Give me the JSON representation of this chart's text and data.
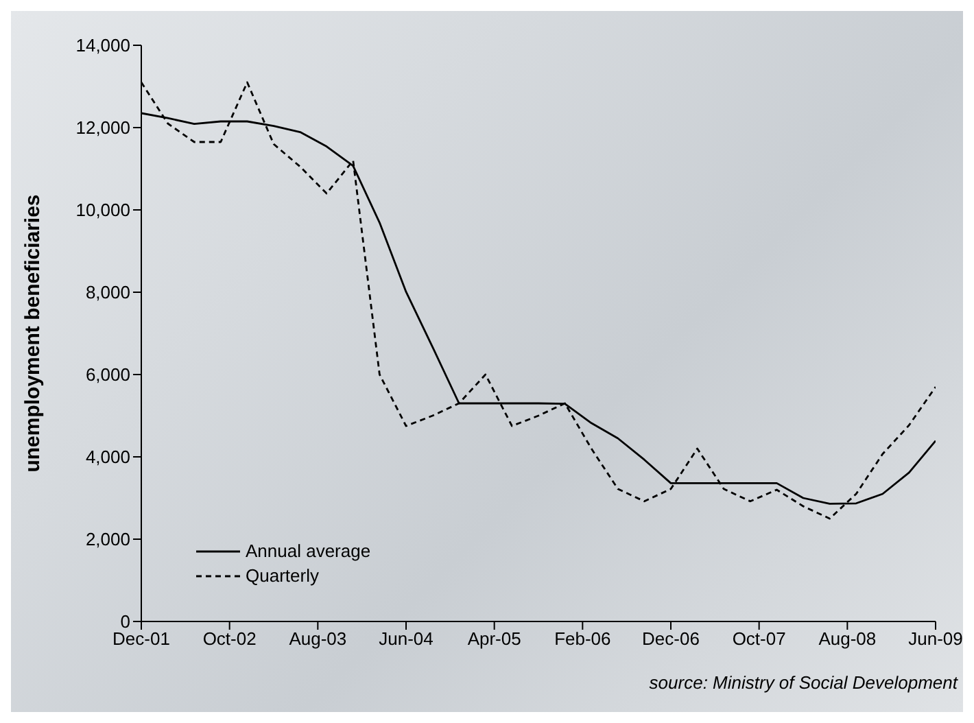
{
  "chart_data": {
    "type": "line",
    "ylabel": "unemployment beneficiaries",
    "x": [
      "2001-12",
      "2002-03",
      "2002-06",
      "2002-09",
      "2002-12",
      "2003-03",
      "2003-06",
      "2003-09",
      "2003-12",
      "2004-03",
      "2004-06",
      "2004-09",
      "2004-12",
      "2005-03",
      "2005-06",
      "2005-09",
      "2005-12",
      "2006-03",
      "2006-06",
      "2006-09",
      "2006-12",
      "2007-03",
      "2007-06",
      "2007-09",
      "2007-12",
      "2008-03",
      "2008-06",
      "2008-09",
      "2008-12",
      "2009-03",
      "2009-06"
    ],
    "series": [
      {
        "name": "Annual average",
        "color": "#000000",
        "line_style": "solid",
        "values": [
          12350,
          12230,
          12090,
          12150,
          12150,
          12040,
          11890,
          11540,
          11070,
          9690,
          8010,
          6670,
          5300,
          5300,
          5300,
          5300,
          5290,
          4820,
          4450,
          3930,
          3360,
          3360,
          3360,
          3360,
          3360,
          3000,
          2860,
          2870,
          3100,
          3620,
          4390
        ]
      },
      {
        "name": "Quarterly",
        "color": "#000000",
        "line_style": "dashed",
        "values": [
          13100,
          12100,
          11650,
          11650,
          13100,
          11600,
          11050,
          10400,
          11200,
          6000,
          4750,
          5000,
          5300,
          6000,
          4750,
          5000,
          5300,
          4200,
          3220,
          2920,
          3220,
          4200,
          3220,
          2920,
          3200,
          2800,
          2500,
          3100,
          4070,
          4770,
          5700
        ]
      }
    ],
    "xlim": [
      "2001-12",
      "2009-06"
    ],
    "xticks": [
      {
        "value": "2001-12",
        "label": "Dec-01"
      },
      {
        "value": "2002-10",
        "label": "Oct-02"
      },
      {
        "value": "2003-08",
        "label": "Aug-03"
      },
      {
        "value": "2004-06",
        "label": "Jun-04"
      },
      {
        "value": "2005-04",
        "label": "Apr-05"
      },
      {
        "value": "2006-02",
        "label": "Feb-06"
      },
      {
        "value": "2006-12",
        "label": "Dec-06"
      },
      {
        "value": "2007-10",
        "label": "Oct-07"
      },
      {
        "value": "2008-08",
        "label": "Aug-08"
      },
      {
        "value": "2009-06",
        "label": "Jun-09"
      }
    ],
    "ylim": [
      0,
      14000
    ],
    "yticks": [
      {
        "value": 0,
        "label": "0"
      },
      {
        "value": 2000,
        "label": "2,000"
      },
      {
        "value": 4000,
        "label": "4,000"
      },
      {
        "value": 6000,
        "label": "6,000"
      },
      {
        "value": 8000,
        "label": "8,000"
      },
      {
        "value": 10000,
        "label": "10,000"
      },
      {
        "value": 12000,
        "label": "12,000"
      },
      {
        "value": 14000,
        "label": "14,000"
      }
    ],
    "grid": false,
    "legend": "bottom left",
    "marker": "none",
    "annotations": [
      "source: Ministry of Social Development"
    ]
  }
}
